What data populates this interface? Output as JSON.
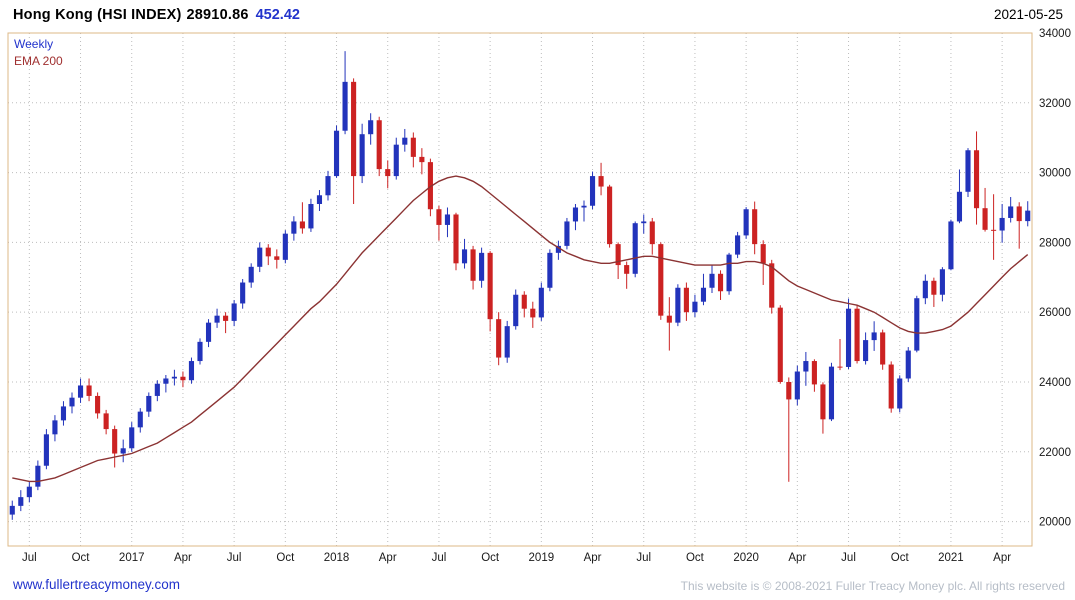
{
  "header": {
    "title": "Hong Kong (HSI INDEX)",
    "last_price": "28910.86",
    "change": "452.42",
    "date": "2021-05-25"
  },
  "legend": {
    "timeframe": "Weekly",
    "overlay": "EMA 200"
  },
  "footer": {
    "site_link": "www.fullertreacymoney.com",
    "copyright": "This website is © 2008-2021 Fuller Treacy Money plc. All rights reserved"
  },
  "colors": {
    "up": "#2233bb",
    "down": "#cc2222",
    "ema": "#8b3333",
    "grid": "#bdbdbd",
    "frame": "#deb887",
    "axis_text": "#1a1a1a",
    "link": "#2233cc",
    "copyright": "#b6bdc7"
  },
  "chart_data": {
    "type": "candlestick",
    "title": "Hong Kong (HSI INDEX) weekly candlesticks with 200-period EMA",
    "legend_entries": [
      "Weekly",
      "EMA 200"
    ],
    "ylim": [
      19300,
      34000
    ],
    "y_ticks": [
      34000,
      32000,
      30000,
      28000,
      26000,
      24000,
      22000,
      20000
    ],
    "grid": "dotted",
    "x_labels": [
      {
        "label": "Jul",
        "m": 1
      },
      {
        "label": "Oct",
        "m": 4
      },
      {
        "label": "2017",
        "m": 7
      },
      {
        "label": "Apr",
        "m": 10
      },
      {
        "label": "Jul",
        "m": 13
      },
      {
        "label": "Oct",
        "m": 16
      },
      {
        "label": "2018",
        "m": 19
      },
      {
        "label": "Apr",
        "m": 22
      },
      {
        "label": "Jul",
        "m": 25
      },
      {
        "label": "Oct",
        "m": 28
      },
      {
        "label": "2019",
        "m": 31
      },
      {
        "label": "Apr",
        "m": 34
      },
      {
        "label": "Jul",
        "m": 37
      },
      {
        "label": "Oct",
        "m": 40
      },
      {
        "label": "2020",
        "m": 43
      },
      {
        "label": "Apr",
        "m": 46
      },
      {
        "label": "Jul",
        "m": 49
      },
      {
        "label": "Oct",
        "m": 52
      },
      {
        "label": "2021",
        "m": 55
      },
      {
        "label": "Apr",
        "m": 58
      }
    ],
    "candles": [
      [
        20200,
        20600,
        20050,
        20450
      ],
      [
        20450,
        20900,
        20300,
        20700
      ],
      [
        20700,
        21150,
        20550,
        21000
      ],
      [
        21000,
        21750,
        20900,
        21600
      ],
      [
        21600,
        22650,
        21500,
        22500
      ],
      [
        22500,
        23050,
        22300,
        22900
      ],
      [
        22900,
        23450,
        22750,
        23300
      ],
      [
        23300,
        23700,
        23100,
        23550
      ],
      [
        23550,
        24100,
        23400,
        23900
      ],
      [
        23900,
        24100,
        23450,
        23600
      ],
      [
        23600,
        23700,
        22950,
        23100
      ],
      [
        23100,
        23200,
        22500,
        22650
      ],
      [
        22650,
        22750,
        21550,
        21950
      ],
      [
        21950,
        22350,
        21700,
        22100
      ],
      [
        22100,
        22850,
        22000,
        22700
      ],
      [
        22700,
        23250,
        22550,
        23150
      ],
      [
        23150,
        23700,
        23000,
        23600
      ],
      [
        23600,
        24050,
        23450,
        23950
      ],
      [
        23950,
        24200,
        23700,
        24100
      ],
      [
        24100,
        24350,
        23900,
        24150
      ],
      [
        24150,
        24300,
        23850,
        24050
      ],
      [
        24050,
        24700,
        23950,
        24600
      ],
      [
        24600,
        25250,
        24500,
        25150
      ],
      [
        25150,
        25800,
        25000,
        25700
      ],
      [
        25700,
        26100,
        25550,
        25900
      ],
      [
        25900,
        26000,
        25400,
        25750
      ],
      [
        25750,
        26350,
        25600,
        26250
      ],
      [
        26250,
        26950,
        26100,
        26850
      ],
      [
        26850,
        27400,
        26700,
        27300
      ],
      [
        27300,
        28000,
        27150,
        27850
      ],
      [
        27850,
        27950,
        27350,
        27600
      ],
      [
        27600,
        27800,
        27250,
        27500
      ],
      [
        27500,
        28350,
        27400,
        28250
      ],
      [
        28250,
        28750,
        28050,
        28600
      ],
      [
        28600,
        29150,
        28250,
        28400
      ],
      [
        28400,
        29250,
        28300,
        29100
      ],
      [
        29100,
        29500,
        28900,
        29350
      ],
      [
        29350,
        30050,
        29200,
        29900
      ],
      [
        29900,
        31350,
        29850,
        31200
      ],
      [
        31200,
        33480,
        31100,
        32600
      ],
      [
        32600,
        32700,
        29100,
        29900
      ],
      [
        29900,
        31400,
        29700,
        31100
      ],
      [
        31100,
        31700,
        30800,
        31500
      ],
      [
        31500,
        31600,
        29900,
        30100
      ],
      [
        30100,
        30350,
        29550,
        29900
      ],
      [
        29900,
        31000,
        29800,
        30800
      ],
      [
        30800,
        31250,
        30600,
        31000
      ],
      [
        31000,
        31150,
        30150,
        30450
      ],
      [
        30450,
        30700,
        29950,
        30300
      ],
      [
        30300,
        30400,
        28750,
        28950
      ],
      [
        28950,
        29050,
        28050,
        28500
      ],
      [
        28500,
        29000,
        28150,
        28800
      ],
      [
        28800,
        28850,
        27200,
        27400
      ],
      [
        27400,
        28100,
        27250,
        27800
      ],
      [
        27800,
        27900,
        26650,
        26900
      ],
      [
        26900,
        27850,
        26700,
        27700
      ],
      [
        27700,
        27750,
        25450,
        25800
      ],
      [
        25800,
        26000,
        24480,
        24700
      ],
      [
        24700,
        25750,
        24550,
        25600
      ],
      [
        25600,
        26650,
        25500,
        26500
      ],
      [
        26500,
        26600,
        25850,
        26100
      ],
      [
        26100,
        26300,
        25550,
        25850
      ],
      [
        25850,
        26850,
        25750,
        26700
      ],
      [
        26700,
        27800,
        26600,
        27700
      ],
      [
        27700,
        28050,
        27500,
        27900
      ],
      [
        27900,
        28700,
        27800,
        28600
      ],
      [
        28600,
        29100,
        28350,
        29000
      ],
      [
        29000,
        29200,
        28600,
        29050
      ],
      [
        29050,
        30030,
        28950,
        29900
      ],
      [
        29900,
        30280,
        29350,
        29600
      ],
      [
        29600,
        29650,
        27850,
        27950
      ],
      [
        27950,
        28000,
        26950,
        27350
      ],
      [
        27350,
        27450,
        26670,
        27100
      ],
      [
        27100,
        28600,
        27000,
        28550
      ],
      [
        28550,
        28800,
        28250,
        28600
      ],
      [
        28600,
        28700,
        27650,
        27950
      ],
      [
        27950,
        28000,
        25780,
        25900
      ],
      [
        25900,
        26430,
        24900,
        25700
      ],
      [
        25700,
        26800,
        25600,
        26700
      ],
      [
        26700,
        26850,
        25750,
        26000
      ],
      [
        26000,
        26500,
        25860,
        26300
      ],
      [
        26300,
        27100,
        26200,
        26700
      ],
      [
        26700,
        27350,
        26550,
        27100
      ],
      [
        27100,
        27200,
        26350,
        26600
      ],
      [
        26600,
        27700,
        26500,
        27650
      ],
      [
        27650,
        28300,
        27550,
        28200
      ],
      [
        28200,
        29010,
        28100,
        28950
      ],
      [
        28950,
        29170,
        27660,
        27950
      ],
      [
        27950,
        28060,
        26780,
        27400
      ],
      [
        27400,
        27500,
        25960,
        26130
      ],
      [
        26130,
        26200,
        23950,
        24000
      ],
      [
        24000,
        24130,
        21140,
        23500
      ],
      [
        23500,
        24470,
        23330,
        24300
      ],
      [
        24300,
        24860,
        23890,
        24600
      ],
      [
        24600,
        24650,
        23720,
        23930
      ],
      [
        23930,
        23990,
        22520,
        22930
      ],
      [
        22930,
        24550,
        22880,
        24440
      ],
      [
        24440,
        25230,
        24340,
        24430
      ],
      [
        24430,
        26390,
        24370,
        26100
      ],
      [
        26100,
        26200,
        24530,
        24600
      ],
      [
        24600,
        25420,
        24500,
        25200
      ],
      [
        25200,
        25740,
        24890,
        25420
      ],
      [
        25420,
        25500,
        24350,
        24500
      ],
      [
        24500,
        24590,
        23120,
        23240
      ],
      [
        23240,
        24190,
        23130,
        24100
      ],
      [
        24100,
        25000,
        24000,
        24900
      ],
      [
        24900,
        26470,
        24850,
        26400
      ],
      [
        26400,
        27080,
        26230,
        26900
      ],
      [
        26900,
        26990,
        26150,
        26500
      ],
      [
        26500,
        27290,
        26310,
        27230
      ],
      [
        27230,
        28650,
        27200,
        28600
      ],
      [
        28600,
        30090,
        28550,
        29450
      ],
      [
        29450,
        30700,
        29300,
        30640
      ],
      [
        30640,
        31180,
        28510,
        28980
      ],
      [
        28980,
        29560,
        28310,
        28360
      ],
      [
        28360,
        29380,
        27500,
        28340
      ],
      [
        28340,
        29100,
        27990,
        28700
      ],
      [
        28700,
        29300,
        28570,
        29030
      ],
      [
        29030,
        29150,
        27820,
        28610
      ],
      [
        28610,
        29180,
        28460,
        28910
      ]
    ],
    "ema": [
      21250,
      21200,
      21150,
      21150,
      21200,
      21250,
      21350,
      21450,
      21550,
      21650,
      21750,
      21800,
      21850,
      21900,
      21950,
      22050,
      22150,
      22250,
      22400,
      22550,
      22700,
      22850,
      23050,
      23250,
      23450,
      23650,
      23850,
      24100,
      24350,
      24600,
      24850,
      25100,
      25350,
      25600,
      25850,
      26100,
      26300,
      26550,
      26800,
      27100,
      27400,
      27700,
      27950,
      28200,
      28450,
      28700,
      28950,
      29200,
      29400,
      29600,
      29750,
      29850,
      29900,
      29850,
      29750,
      29600,
      29400,
      29200,
      29000,
      28800,
      28600,
      28400,
      28200,
      28000,
      27850,
      27700,
      27600,
      27500,
      27450,
      27400,
      27400,
      27450,
      27500,
      27550,
      27600,
      27600,
      27550,
      27500,
      27450,
      27400,
      27350,
      27350,
      27350,
      27350,
      27400,
      27400,
      27450,
      27450,
      27400,
      27300,
      27100,
      26900,
      26750,
      26650,
      26550,
      26450,
      26350,
      26300,
      26250,
      26200,
      26100,
      26000,
      25850,
      25700,
      25550,
      25450,
      25400,
      25400,
      25450,
      25500,
      25600,
      25800,
      26000,
      26250,
      26500,
      26750,
      27000,
      27250,
      27450,
      27650
    ]
  }
}
